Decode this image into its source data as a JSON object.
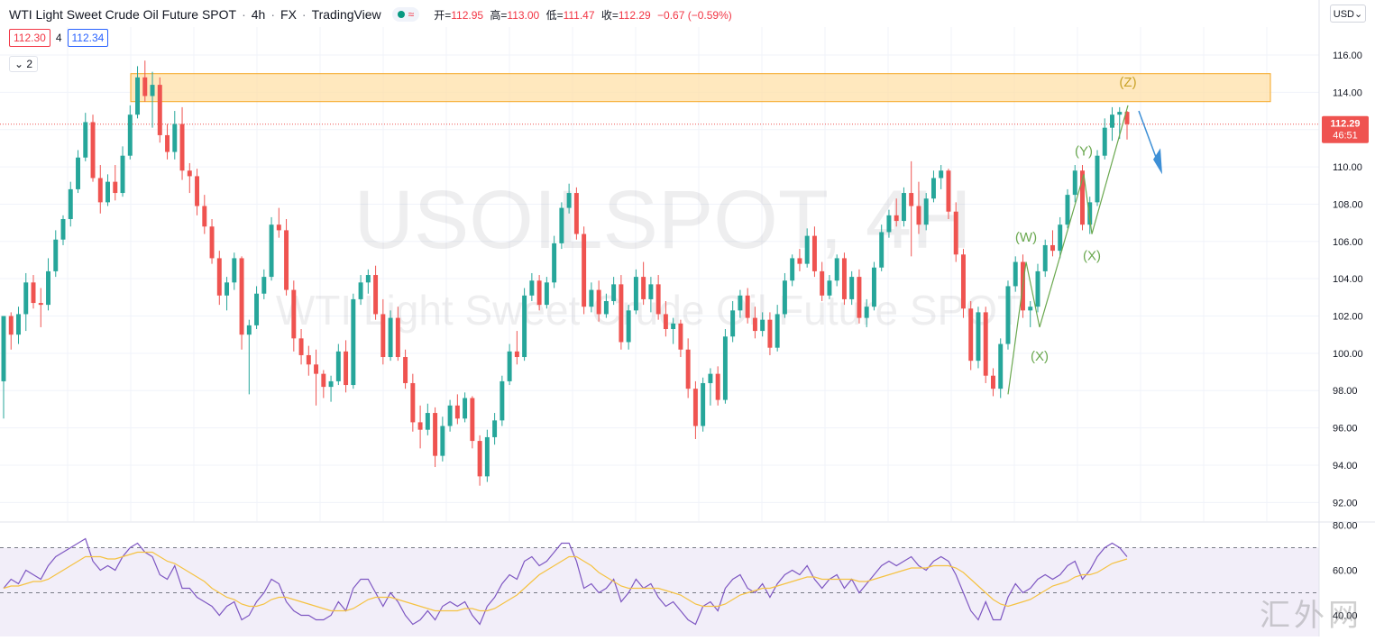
{
  "header": {
    "symbol": "WTI Light Sweet Crude Oil Future SPOT",
    "interval": "4h",
    "exchange": "FX",
    "source": "TradingView",
    "status_icon": "market-open-dot-icon",
    "wave_icon": "approx-wave-icon",
    "ohlc": {
      "open_label": "开=",
      "open": "112.95",
      "high_label": "高=",
      "high": "113.00",
      "low_label": "低=",
      "low": "111.47",
      "close_label": "收=",
      "close": "112.29",
      "change": "−0.67 (−0.59%)"
    }
  },
  "bidask": {
    "bid": "112.30",
    "spread": "4",
    "ask": "112.34"
  },
  "indicator_toggle": "⌄ 2",
  "currency_button": "USD⌄",
  "price_axis": {
    "ticks": [
      "116.00",
      "114.00",
      "112.00",
      "110.00",
      "108.00",
      "106.00",
      "104.00",
      "102.00",
      "100.00",
      "98.00",
      "96.00",
      "94.00",
      "92.00"
    ],
    "last_price": "112.29",
    "countdown": "46:51"
  },
  "rsi_axis": {
    "ticks": [
      "80.00",
      "60.00",
      "40.00"
    ]
  },
  "watermark": {
    "line1": "USOILSPOT, 4H",
    "line2": "WTI Light Sweet Crude Oil Future SPOT"
  },
  "site_mark": "汇外网",
  "wave_labels": [
    "(W)",
    "(X)",
    "(Y)",
    "(X)",
    "(Z)"
  ],
  "colors": {
    "up": "#26a69a",
    "down": "#ef5350",
    "rsi": "#7e57c2",
    "rsi_ma": "#f5c242",
    "zone_fill": "#ffe0a8",
    "zone_border": "#f5a623",
    "wave_green": "#6aa84f",
    "arrow": "#3d8fd6"
  },
  "chart_data": {
    "type": "candlestick",
    "y_range": [
      91,
      117.5
    ],
    "rsi_range": [
      35,
      81
    ],
    "supply_zone": [
      113.5,
      115
    ],
    "last_price": 112.29,
    "candles": [
      [
        98.5,
        102,
        96.5,
        102
      ],
      [
        102,
        102.2,
        100.2,
        101
      ],
      [
        101,
        102.5,
        100.5,
        102.1
      ],
      [
        102.1,
        104.3,
        101.2,
        103.8
      ],
      [
        103.8,
        104.2,
        102.4,
        102.7
      ],
      [
        102.7,
        103.5,
        101.4,
        102.6
      ],
      [
        102.6,
        105.1,
        102.3,
        104.4
      ],
      [
        104.4,
        106.6,
        104.1,
        106.1
      ],
      [
        106.1,
        107.4,
        105.8,
        107.2
      ],
      [
        107.2,
        109.2,
        106.8,
        108.8
      ],
      [
        108.8,
        110.9,
        108.6,
        110.5
      ],
      [
        110.5,
        112.9,
        110.3,
        112.4
      ],
      [
        112.4,
        112.8,
        109.2,
        109.4
      ],
      [
        109.4,
        110.1,
        107.5,
        108.1
      ],
      [
        108.1,
        109.6,
        107.9,
        109.2
      ],
      [
        109.2,
        110.1,
        108.2,
        108.6
      ],
      [
        108.6,
        111.1,
        108.4,
        110.6
      ],
      [
        110.6,
        113.3,
        110.4,
        112.8
      ],
      [
        112.8,
        115.4,
        112.6,
        114.8
      ],
      [
        114.8,
        115.7,
        113.5,
        113.8
      ],
      [
        113.8,
        115.1,
        112.1,
        114.4
      ],
      [
        114.4,
        114.8,
        111.3,
        111.7
      ],
      [
        111.7,
        112.3,
        110.4,
        110.8
      ],
      [
        110.8,
        113,
        110.4,
        112.3
      ],
      [
        112.3,
        113.2,
        109.3,
        109.8
      ],
      [
        109.8,
        110.2,
        108.6,
        109.5
      ],
      [
        109.5,
        109.9,
        107.4,
        107.9
      ],
      [
        107.9,
        108.5,
        106.4,
        106.8
      ],
      [
        106.8,
        107.2,
        104.8,
        105.1
      ],
      [
        105.1,
        105.5,
        102.6,
        103.1
      ],
      [
        103.1,
        104.1,
        102.3,
        103.8
      ],
      [
        103.8,
        105.4,
        103.4,
        105.1
      ],
      [
        105.1,
        105.2,
        100.2,
        101
      ],
      [
        101,
        101.8,
        97.8,
        101.5
      ],
      [
        101.5,
        103.6,
        101.3,
        103.2
      ],
      [
        103.2,
        104.5,
        102.9,
        104.1
      ],
      [
        104.1,
        107.3,
        103.9,
        106.9
      ],
      [
        106.9,
        107.8,
        106.2,
        106.6
      ],
      [
        106.6,
        107.2,
        103.1,
        103.4
      ],
      [
        103.4,
        103.9,
        100.1,
        100.8
      ],
      [
        100.8,
        101.3,
        99.4,
        99.9
      ],
      [
        99.9,
        100.4,
        98.8,
        99.4
      ],
      [
        99.4,
        100.2,
        97.2,
        98.9
      ],
      [
        98.9,
        99.1,
        97.6,
        98.2
      ],
      [
        98.2,
        98.8,
        97.4,
        98.5
      ],
      [
        98.5,
        100.5,
        98.3,
        100.1
      ],
      [
        100.1,
        100.7,
        97.9,
        98.3
      ],
      [
        98.3,
        103.2,
        98.1,
        102.9
      ],
      [
        102.9,
        104.2,
        102.6,
        103.8
      ],
      [
        103.8,
        104.5,
        103.2,
        104.2
      ],
      [
        104.2,
        104.7,
        101.8,
        102.1
      ],
      [
        102.1,
        102.9,
        99.4,
        99.8
      ],
      [
        99.8,
        102.3,
        99.6,
        101.9
      ],
      [
        101.9,
        102.5,
        99.6,
        99.8
      ],
      [
        99.8,
        100.2,
        98.1,
        98.4
      ],
      [
        98.4,
        98.9,
        95.8,
        96.3
      ],
      [
        96.3,
        97.2,
        94.9,
        95.9
      ],
      [
        95.9,
        97.3,
        95.6,
        96.8
      ],
      [
        96.8,
        97.1,
        93.9,
        94.5
      ],
      [
        94.5,
        96.6,
        94.2,
        96.1
      ],
      [
        96.1,
        97.5,
        95.8,
        97.2
      ],
      [
        97.2,
        97.8,
        96.2,
        96.5
      ],
      [
        96.5,
        97.9,
        96.3,
        97.6
      ],
      [
        97.6,
        97.7,
        94.9,
        95.3
      ],
      [
        95.3,
        95.6,
        92.9,
        93.4
      ],
      [
        93.4,
        95.9,
        93.1,
        95.5
      ],
      [
        95.5,
        96.8,
        95.1,
        96.4
      ],
      [
        96.4,
        98.8,
        96.1,
        98.5
      ],
      [
        98.5,
        100.5,
        98.3,
        100.1
      ],
      [
        100.1,
        101.2,
        99.4,
        99.8
      ],
      [
        99.8,
        103.5,
        99.6,
        103.1
      ],
      [
        103.1,
        104.3,
        102.8,
        103.9
      ],
      [
        103.9,
        104.2,
        102.3,
        102.6
      ],
      [
        102.6,
        104.1,
        102.4,
        103.8
      ],
      [
        103.8,
        106.3,
        103.5,
        105.9
      ],
      [
        105.9,
        108.1,
        105.6,
        107.8
      ],
      [
        107.8,
        109.1,
        107.5,
        108.6
      ],
      [
        108.6,
        108.9,
        106.1,
        106.4
      ],
      [
        106.4,
        106.8,
        102.1,
        102.5
      ],
      [
        102.5,
        103.8,
        102.2,
        103.4
      ],
      [
        103.4,
        103.9,
        101.7,
        102.1
      ],
      [
        102.1,
        103.2,
        101.9,
        102.8
      ],
      [
        102.8,
        104.1,
        102.6,
        103.7
      ],
      [
        103.7,
        104.2,
        100.2,
        100.6
      ],
      [
        100.6,
        102.6,
        100.2,
        102.3
      ],
      [
        102.3,
        104.5,
        102.1,
        104.1
      ],
      [
        104.1,
        104.9,
        102.6,
        102.9
      ],
      [
        102.9,
        104.1,
        102.2,
        103.7
      ],
      [
        103.7,
        104.2,
        101.8,
        102.1
      ],
      [
        102.1,
        102.8,
        100.9,
        101.3
      ],
      [
        101.3,
        101.9,
        100.5,
        101.6
      ],
      [
        101.6,
        101.8,
        99.8,
        100.2
      ],
      [
        100.2,
        100.8,
        97.6,
        98.1
      ],
      [
        98.1,
        98.5,
        95.4,
        96.1
      ],
      [
        96.1,
        98.7,
        95.8,
        98.4
      ],
      [
        98.4,
        99.2,
        97.2,
        98.9
      ],
      [
        98.9,
        99.3,
        97.2,
        97.5
      ],
      [
        97.5,
        101.3,
        97.3,
        100.9
      ],
      [
        100.9,
        102.8,
        100.6,
        102.3
      ],
      [
        102.3,
        103.4,
        101.9,
        103.1
      ],
      [
        103.1,
        103.5,
        101.6,
        101.9
      ],
      [
        101.9,
        102.5,
        100.8,
        101.2
      ],
      [
        101.2,
        102.2,
        100.9,
        101.8
      ],
      [
        101.8,
        102.2,
        99.9,
        100.3
      ],
      [
        100.3,
        102.6,
        100.1,
        102.1
      ],
      [
        102.1,
        104.3,
        101.9,
        103.9
      ],
      [
        103.9,
        105.3,
        103.6,
        105.1
      ],
      [
        105.1,
        105.6,
        104.4,
        104.8
      ],
      [
        104.8,
        106.7,
        104.6,
        106.3
      ],
      [
        106.3,
        106.8,
        104.1,
        104.4
      ],
      [
        104.4,
        104.9,
        102.8,
        103.1
      ],
      [
        103.1,
        104.2,
        102.9,
        103.9
      ],
      [
        103.9,
        105.3,
        103.6,
        105.1
      ],
      [
        105.1,
        105.4,
        102.6,
        102.9
      ],
      [
        102.9,
        104.4,
        102.6,
        104.1
      ],
      [
        104.1,
        104.5,
        101.6,
        101.9
      ],
      [
        101.9,
        102.9,
        101.4,
        102.5
      ],
      [
        102.5,
        104.9,
        102.3,
        104.6
      ],
      [
        104.6,
        106.9,
        104.4,
        106.5
      ],
      [
        106.5,
        107.7,
        106.2,
        107.4
      ],
      [
        107.4,
        108.3,
        106.8,
        107.1
      ],
      [
        107.1,
        108.9,
        106.8,
        108.6
      ],
      [
        108.6,
        110.3,
        105.2,
        107.9
      ],
      [
        107.9,
        109.2,
        106.4,
        106.9
      ],
      [
        106.9,
        108.6,
        106.6,
        108.3
      ],
      [
        108.3,
        109.8,
        108.1,
        109.4
      ],
      [
        109.4,
        110.1,
        108.8,
        109.8
      ],
      [
        109.8,
        109.9,
        107.2,
        107.6
      ],
      [
        107.6,
        108.1,
        104.9,
        105.3
      ],
      [
        105.3,
        105.6,
        101.9,
        102.4
      ],
      [
        102.4,
        102.8,
        99.1,
        99.6
      ],
      [
        99.6,
        102.5,
        99.2,
        102.2
      ],
      [
        102.2,
        102.5,
        98.4,
        98.8
      ],
      [
        98.8,
        99.2,
        97.7,
        98.1
      ],
      [
        98.1,
        100.8,
        97.6,
        100.5
      ],
      [
        100.5,
        103.9,
        100.2,
        103.6
      ],
      [
        103.6,
        105.2,
        103.3,
        104.9
      ],
      [
        104.9,
        105.3,
        101.9,
        102.3
      ],
      [
        102.3,
        102.8,
        101.4,
        102.5
      ],
      [
        102.5,
        104.8,
        102.2,
        104.4
      ],
      [
        104.4,
        106.1,
        104.1,
        105.8
      ],
      [
        105.8,
        106.6,
        105.2,
        105.5
      ],
      [
        105.5,
        107.3,
        105.1,
        106.9
      ],
      [
        106.9,
        108.8,
        106.7,
        108.5
      ],
      [
        108.5,
        110.1,
        108.1,
        109.8
      ],
      [
        109.8,
        110.1,
        106.6,
        106.9
      ],
      [
        106.9,
        108.4,
        106.4,
        108.1
      ],
      [
        108.1,
        110.9,
        107.9,
        110.6
      ],
      [
        110.6,
        112.6,
        110.4,
        112.1
      ],
      [
        112.1,
        113.2,
        111.4,
        112.8
      ],
      [
        112.8,
        113.2,
        111.5,
        112.95
      ],
      [
        112.95,
        113,
        111.47,
        112.29
      ]
    ],
    "rsi_values": [
      52,
      56,
      54,
      60,
      58,
      56,
      62,
      66,
      68,
      70,
      72,
      74,
      64,
      60,
      62,
      60,
      66,
      70,
      72,
      68,
      66,
      58,
      56,
      62,
      52,
      52,
      48,
      46,
      44,
      40,
      44,
      46,
      38,
      40,
      46,
      50,
      56,
      54,
      46,
      42,
      40,
      40,
      38,
      38,
      40,
      46,
      42,
      52,
      56,
      56,
      50,
      44,
      50,
      46,
      40,
      36,
      38,
      42,
      38,
      44,
      46,
      44,
      46,
      40,
      36,
      44,
      48,
      54,
      58,
      56,
      64,
      66,
      62,
      64,
      68,
      72,
      72,
      64,
      52,
      54,
      50,
      52,
      56,
      46,
      50,
      56,
      52,
      54,
      48,
      44,
      46,
      42,
      38,
      36,
      44,
      46,
      42,
      52,
      56,
      58,
      52,
      50,
      54,
      48,
      54,
      58,
      60,
      58,
      62,
      56,
      52,
      56,
      58,
      52,
      56,
      50,
      54,
      58,
      62,
      64,
      62,
      64,
      66,
      62,
      60,
      64,
      66,
      64,
      58,
      50,
      42,
      38,
      46,
      38,
      38,
      48,
      54,
      50,
      52,
      56,
      58,
      56,
      58,
      62,
      64,
      56,
      60,
      66,
      70,
      72,
      70,
      66
    ],
    "rsi_ma_values": [
      52,
      53,
      53,
      54,
      55,
      55,
      56,
      58,
      60,
      62,
      64,
      66,
      66,
      66,
      65,
      65,
      66,
      67,
      68,
      68,
      68,
      66,
      64,
      63,
      61,
      59,
      57,
      55,
      52,
      50,
      48,
      47,
      45,
      44,
      44,
      45,
      47,
      48,
      48,
      47,
      46,
      45,
      44,
      43,
      42,
      42,
      42,
      43,
      45,
      47,
      48,
      48,
      48,
      47,
      46,
      45,
      44,
      43,
      42,
      42,
      42,
      42,
      43,
      43,
      42,
      42,
      43,
      45,
      47,
      49,
      52,
      55,
      58,
      60,
      62,
      64,
      66,
      66,
      64,
      62,
      59,
      57,
      55,
      53,
      52,
      52,
      52,
      52,
      52,
      51,
      50,
      49,
      47,
      45,
      44,
      44,
      44,
      45,
      47,
      49,
      50,
      51,
      52,
      52,
      53,
      54,
      55,
      56,
      57,
      57,
      56,
      56,
      56,
      56,
      56,
      55,
      55,
      56,
      57,
      58,
      59,
      60,
      61,
      61,
      61,
      62,
      62,
      62,
      61,
      59,
      56,
      53,
      50,
      47,
      45,
      44,
      45,
      46,
      47,
      49,
      51,
      53,
      54,
      55,
      57,
      58,
      58,
      59,
      61,
      63,
      64,
      65
    ]
  }
}
